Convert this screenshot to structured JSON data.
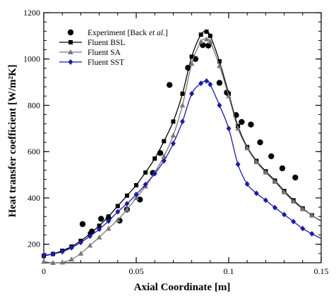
{
  "chart_data": {
    "type": "line",
    "xlabel": "Axial Coordinate [m]",
    "ylabel": "Heat transfer coefficient [W/m²K]",
    "xlim": [
      0,
      0.15
    ],
    "ylim": [
      120,
      1200
    ],
    "x_ticks": [
      0,
      0.05,
      0.1,
      0.15
    ],
    "x_tick_labels": [
      "0",
      "0.05",
      "0.1",
      "0.15"
    ],
    "y_ticks": [
      200,
      400,
      600,
      800,
      1000,
      1200
    ],
    "y_tick_labels": [
      "200",
      "400",
      "600",
      "800",
      "1000",
      "1200"
    ],
    "grid": false,
    "legend_position": "top-left",
    "series": [
      {
        "name": "Experiment [Back et al.]",
        "legend_parts": [
          "Experiment [Back ",
          "et al.",
          "]"
        ],
        "style": "markers",
        "marker": "circle",
        "color": "#000000",
        "x": [
          0.021,
          0.026,
          0.031,
          0.035,
          0.041,
          0.045,
          0.052,
          0.059,
          0.063,
          0.068,
          0.078,
          0.082,
          0.086,
          0.089,
          0.095,
          0.099,
          0.104,
          0.107,
          0.112,
          0.117,
          0.123,
          0.129,
          0.136
        ],
        "y": [
          287,
          255,
          310,
          312,
          302,
          350,
          393,
          508,
          594,
          888,
          962,
          1000,
          1060,
          1058,
          897,
          855,
          758,
          728,
          717,
          640,
          580,
          528,
          488
        ]
      },
      {
        "name": "Fluent BSL",
        "style": "line+markers",
        "marker": "square",
        "color": "#000000",
        "x": [
          0,
          0.005,
          0.01,
          0.015,
          0.02,
          0.025,
          0.03,
          0.035,
          0.04,
          0.045,
          0.05,
          0.055,
          0.06,
          0.065,
          0.07,
          0.075,
          0.08,
          0.085,
          0.088,
          0.09,
          0.095,
          0.1,
          0.105,
          0.11,
          0.115,
          0.12,
          0.125,
          0.13,
          0.135,
          0.14,
          0.145,
          0.15
        ],
        "y": [
          150,
          158,
          172,
          190,
          215,
          245,
          280,
          320,
          365,
          410,
          455,
          510,
          570,
          645,
          730,
          850,
          1010,
          1105,
          1118,
          1100,
          990,
          850,
          710,
          620,
          560,
          515,
          475,
          430,
          390,
          355,
          325,
          300
        ]
      },
      {
        "name": "Fluent SA",
        "style": "line+markers",
        "marker": "triangle",
        "color": "#777777",
        "x": [
          0,
          0.005,
          0.01,
          0.015,
          0.02,
          0.025,
          0.03,
          0.035,
          0.04,
          0.045,
          0.05,
          0.055,
          0.06,
          0.065,
          0.07,
          0.075,
          0.08,
          0.085,
          0.088,
          0.09,
          0.095,
          0.1,
          0.105,
          0.11,
          0.115,
          0.12,
          0.125,
          0.13,
          0.135,
          0.14,
          0.145,
          0.15
        ],
        "y": [
          125,
          120,
          122,
          135,
          160,
          195,
          230,
          268,
          305,
          350,
          400,
          450,
          510,
          580,
          670,
          800,
          980,
          1075,
          1085,
          1075,
          970,
          840,
          700,
          615,
          555,
          510,
          470,
          425,
          385,
          352,
          325,
          302
        ]
      },
      {
        "name": "Fluent SST",
        "style": "line+markers",
        "marker": "diamond",
        "color": "#1a1aa8",
        "x": [
          0,
          0.005,
          0.01,
          0.015,
          0.02,
          0.025,
          0.03,
          0.035,
          0.04,
          0.045,
          0.05,
          0.055,
          0.06,
          0.065,
          0.07,
          0.075,
          0.08,
          0.085,
          0.088,
          0.09,
          0.095,
          0.1,
          0.105,
          0.11,
          0.115,
          0.12,
          0.125,
          0.13,
          0.135,
          0.14,
          0.145,
          0.15
        ],
        "y": [
          152,
          158,
          168,
          185,
          208,
          235,
          265,
          300,
          340,
          375,
          415,
          458,
          505,
          560,
          635,
          730,
          850,
          895,
          905,
          890,
          800,
          700,
          545,
          460,
          420,
          390,
          358,
          328,
          298,
          268,
          245,
          225
        ]
      }
    ]
  }
}
